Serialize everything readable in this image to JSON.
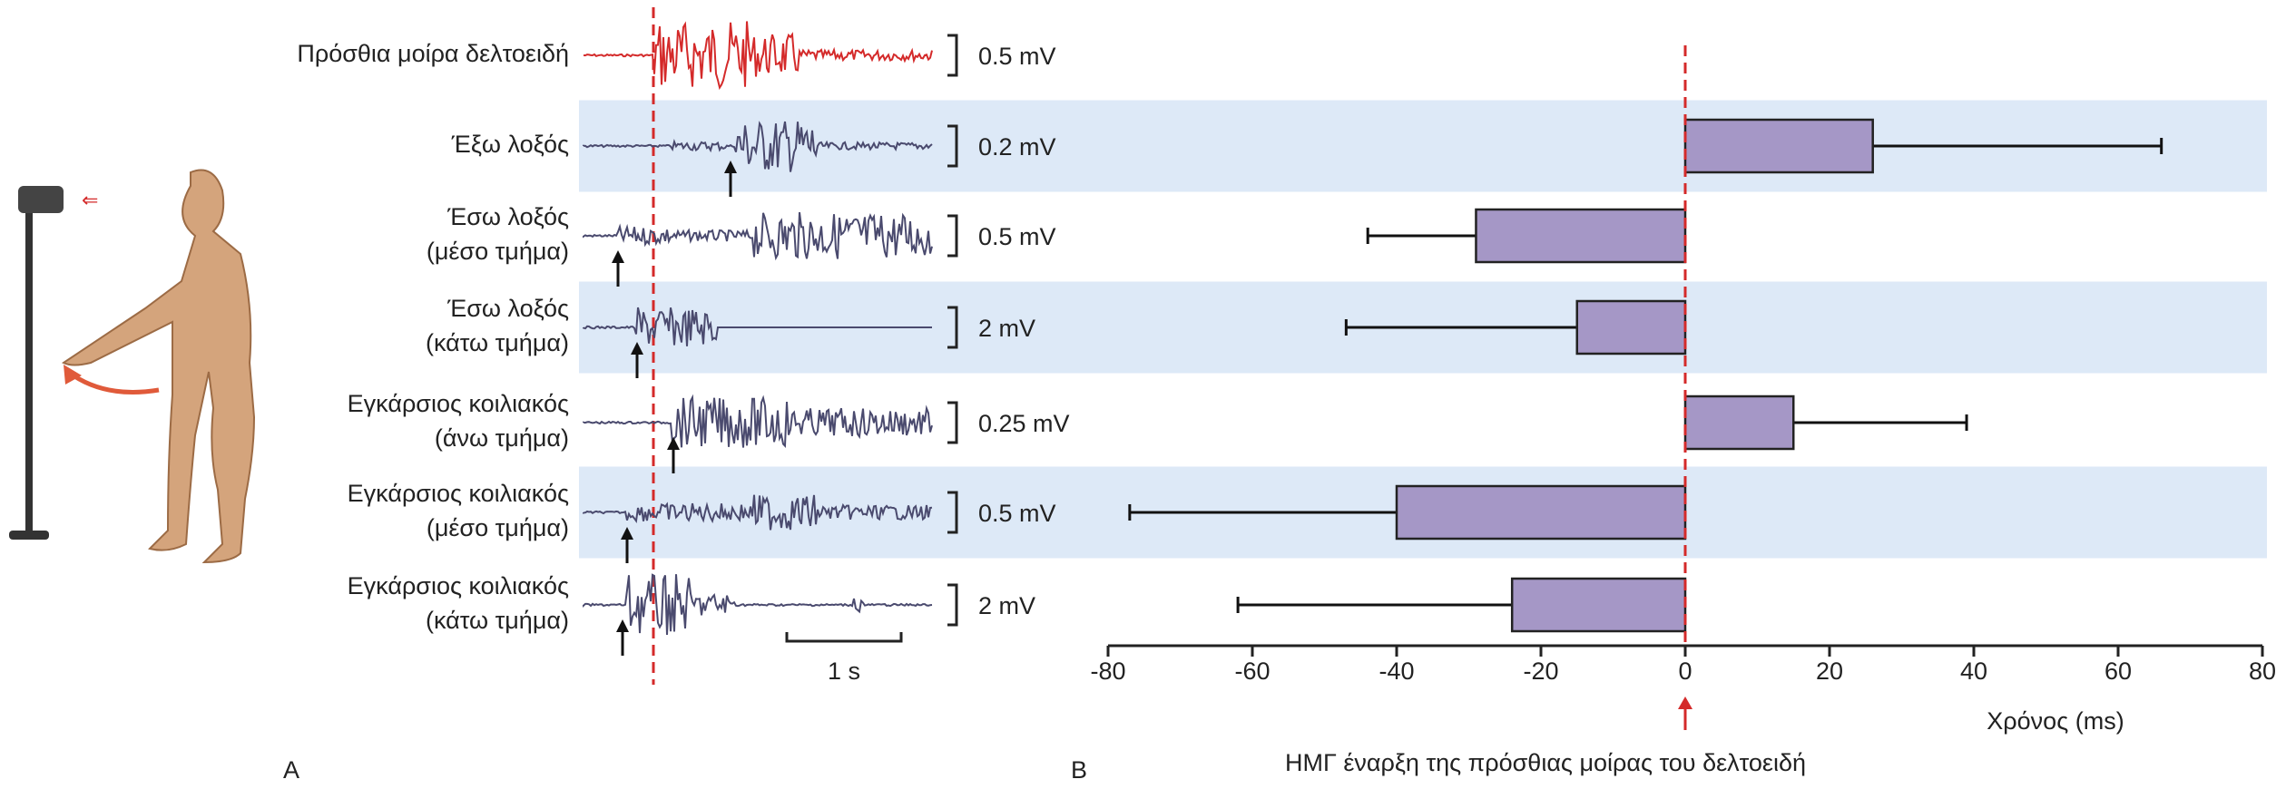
{
  "panel_a": {
    "label": "A",
    "time_scale": "1 s",
    "muscles": [
      "Πρόσθια μοίρα δελτοειδή",
      "Έξω λοξός",
      "Έσω λοξός",
      "Έσω λοξός",
      "Εγκάρσιος κοιλιακός",
      "Εγκάρσιος κοιλιακός",
      "Εγκάρσιος κοιλιακός"
    ],
    "muscle_parts": [
      null,
      null,
      "(μέσο τμήμα)",
      "(κάτω τμήμα)",
      "(άνω τμήμα)",
      "(μέσο τμήμα)",
      "(κάτω τμήμα)"
    ],
    "scales": [
      "0.5 mV",
      "0.2 mV",
      "0.5 mV",
      "2 mV",
      "0.25 mV",
      "0.5 mV",
      "2 mV"
    ]
  },
  "chart_data": {
    "type": "hbar_error",
    "label": "B",
    "values": [
      null,
      26,
      -29,
      -15,
      15,
      -40,
      -24
    ],
    "errors": [
      null,
      40,
      15,
      32,
      24,
      37,
      38
    ],
    "color": "#a597c6",
    "band_color": "#dde9f7",
    "reference_color": "#d42a2a",
    "xlim": [
      -80,
      80
    ],
    "xticks": [
      -80,
      -60,
      -40,
      -20,
      0,
      20,
      40,
      60,
      80
    ],
    "xlabel": "Χρόνος (ms)",
    "annotation": "ΗΜΓ έναρξη της πρόσθιας μοίρας του δελτοειδή"
  }
}
